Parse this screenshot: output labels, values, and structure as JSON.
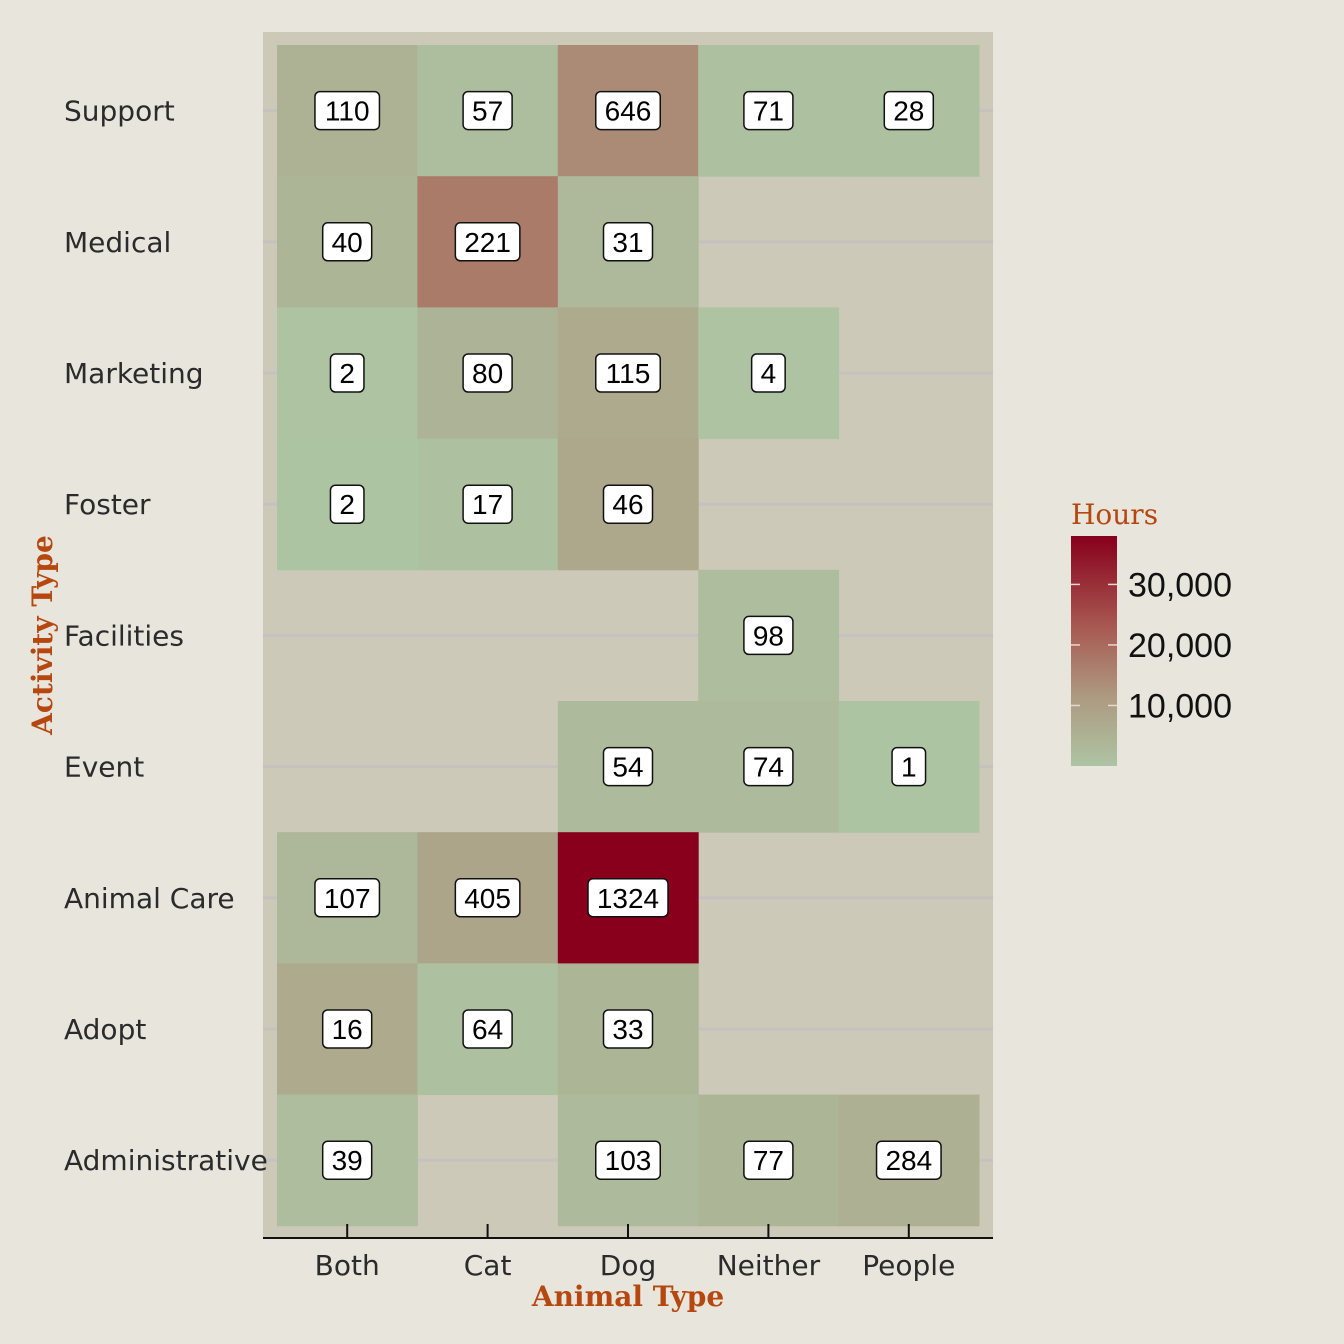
{
  "chart_data": {
    "type": "heatmap",
    "xlabel": "Animal Type",
    "ylabel": "Activity Type",
    "x_categories": [
      "Both",
      "Cat",
      "Dog",
      "Neither",
      "People"
    ],
    "y_categories": [
      "Administrative",
      "Adopt",
      "Animal Care",
      "Event",
      "Facilities",
      "Foster",
      "Marketing",
      "Medical",
      "Support"
    ],
    "cells": [
      {
        "x": "Both",
        "y": "Support",
        "label": "110",
        "hours": 5000
      },
      {
        "x": "Cat",
        "y": "Support",
        "label": "57",
        "hours": 1500
      },
      {
        "x": "Dog",
        "y": "Support",
        "label": "646",
        "hours": 14000
      },
      {
        "x": "Neither",
        "y": "Support",
        "label": "71",
        "hours": 800
      },
      {
        "x": "People",
        "y": "Support",
        "label": "28",
        "hours": 1000
      },
      {
        "x": "Both",
        "y": "Medical",
        "label": "40",
        "hours": 4000
      },
      {
        "x": "Cat",
        "y": "Medical",
        "label": "221",
        "hours": 17000
      },
      {
        "x": "Dog",
        "y": "Medical",
        "label": "31",
        "hours": 3000
      },
      {
        "x": "Both",
        "y": "Marketing",
        "label": "2",
        "hours": 200
      },
      {
        "x": "Cat",
        "y": "Marketing",
        "label": "80",
        "hours": 4500
      },
      {
        "x": "Dog",
        "y": "Marketing",
        "label": "115",
        "hours": 7000
      },
      {
        "x": "Neither",
        "y": "Marketing",
        "label": "4",
        "hours": 300
      },
      {
        "x": "Both",
        "y": "Foster",
        "label": "2",
        "hours": 100
      },
      {
        "x": "Cat",
        "y": "Foster",
        "label": "17",
        "hours": 1200
      },
      {
        "x": "Dog",
        "y": "Foster",
        "label": "46",
        "hours": 8000
      },
      {
        "x": "Neither",
        "y": "Facilities",
        "label": "98",
        "hours": 2000
      },
      {
        "x": "Dog",
        "y": "Event",
        "label": "54",
        "hours": 2500
      },
      {
        "x": "Neither",
        "y": "Event",
        "label": "74",
        "hours": 2500
      },
      {
        "x": "People",
        "y": "Event",
        "label": "1",
        "hours": 50
      },
      {
        "x": "Both",
        "y": "Animal Care",
        "label": "107",
        "hours": 3500
      },
      {
        "x": "Cat",
        "y": "Animal Care",
        "label": "405",
        "hours": 8500
      },
      {
        "x": "Dog",
        "y": "Animal Care",
        "label": "1324",
        "hours": 38000
      },
      {
        "x": "Both",
        "y": "Adopt",
        "label": "16",
        "hours": 7000
      },
      {
        "x": "Cat",
        "y": "Adopt",
        "label": "64",
        "hours": 800
      },
      {
        "x": "Dog",
        "y": "Adopt",
        "label": "33",
        "hours": 4000
      },
      {
        "x": "Both",
        "y": "Administrative",
        "label": "39",
        "hours": 2000
      },
      {
        "x": "Dog",
        "y": "Administrative",
        "label": "103",
        "hours": 2500
      },
      {
        "x": "Neither",
        "y": "Administrative",
        "label": "77",
        "hours": 4000
      },
      {
        "x": "People",
        "y": "Administrative",
        "label": "284",
        "hours": 5500
      }
    ],
    "legend": {
      "title": "Hours",
      "ticks": [
        10000,
        20000,
        30000
      ],
      "tick_labels": [
        "10,000",
        "20,000",
        "30,000"
      ],
      "min": 0,
      "max": 38000,
      "low_color": "#adc4a3",
      "mid_color": "#b09a80",
      "high_color": "#88001c"
    },
    "grid": true,
    "legend_position": "right",
    "panel_color": "#cdc9b9",
    "background_color": "#e8e5dd"
  }
}
